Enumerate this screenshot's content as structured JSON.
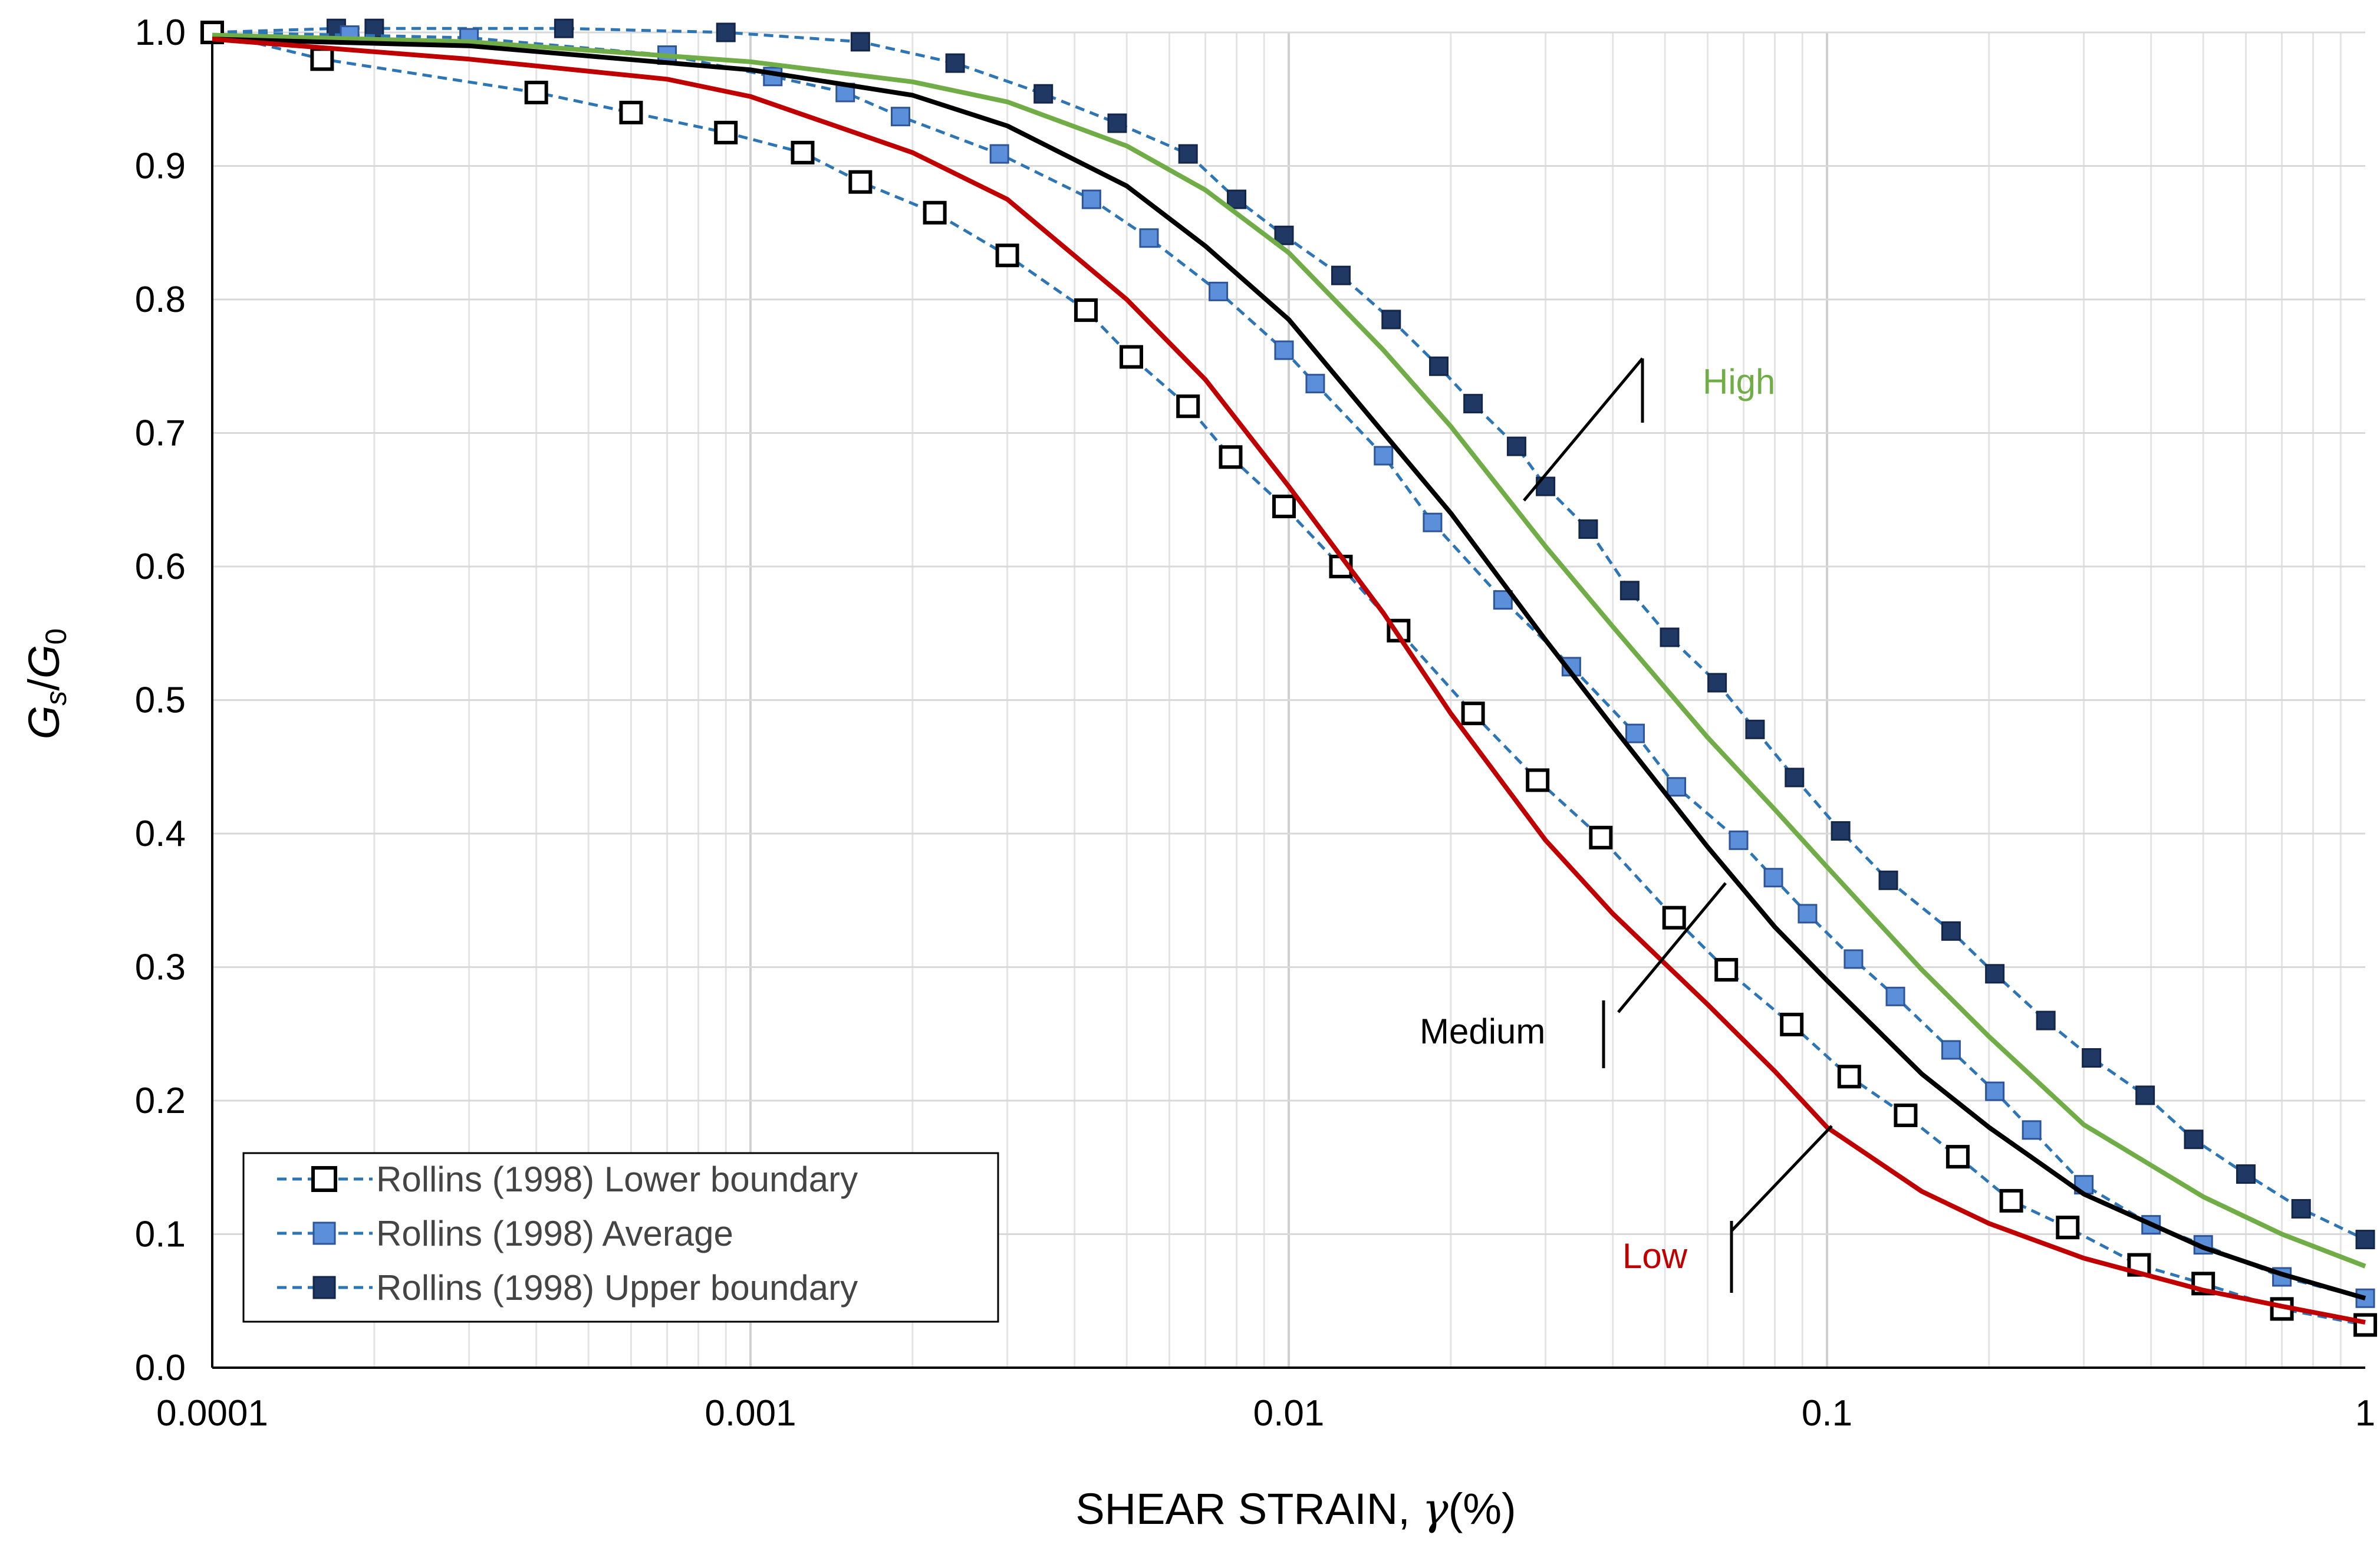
{
  "chart_data": {
    "type": "line",
    "xscale": "log",
    "xlim": [
      0.0001,
      1
    ],
    "ylim": [
      0,
      1
    ],
    "xticks": [
      0.0001,
      0.001,
      0.01,
      0.1,
      1
    ],
    "xtick_labels": [
      "0.0001",
      "0.001",
      "0.01",
      "0.1",
      "1"
    ],
    "yticks": [
      0,
      0.1,
      0.2,
      0.3,
      0.4,
      0.5,
      0.6,
      0.7,
      0.8,
      0.9,
      1.0
    ],
    "ytick_labels": [
      "0.0",
      "0.1",
      "0.2",
      "0.3",
      "0.4",
      "0.5",
      "0.6",
      "0.7",
      "0.8",
      "0.9",
      "1.0"
    ],
    "xlabel": {
      "main": "SHEAR STRAIN, ",
      "symbol": "γ",
      "unit": "(%)"
    },
    "ylabel": {
      "g1": "G",
      "sub1": "s",
      "slash": "/",
      "g2": "G",
      "sub2": "0"
    },
    "grid": true,
    "legend_position": "bottom-left",
    "legend": [
      "Rollins (1998) Lower boundary",
      "Rollins (1998) Average",
      "Rollins  (1998) Upper boundary"
    ],
    "series": [
      {
        "name": "Rollins (1998) Lower boundary",
        "style": "dashed-markers",
        "color": "#2E75B6",
        "marker": "open-square",
        "x": [
          0.0001,
          0.00016,
          0.0004,
          0.0006,
          0.0009,
          0.00125,
          0.0016,
          0.0022,
          0.003,
          0.0042,
          0.0051,
          0.0065,
          0.0078,
          0.0098,
          0.0125,
          0.016,
          0.022,
          0.029,
          0.038,
          0.052,
          0.065,
          0.086,
          0.11,
          0.14,
          0.175,
          0.22,
          0.28,
          0.38,
          0.5,
          0.7,
          1.0
        ],
        "y": [
          1.0,
          0.98,
          0.955,
          0.94,
          0.925,
          0.91,
          0.888,
          0.865,
          0.833,
          0.792,
          0.757,
          0.72,
          0.682,
          0.645,
          0.6,
          0.552,
          0.49,
          0.44,
          0.397,
          0.337,
          0.298,
          0.257,
          0.218,
          0.189,
          0.158,
          0.125,
          0.105,
          0.077,
          0.063,
          0.044,
          0.032
        ]
      },
      {
        "name": "Rollins (1998) Average",
        "style": "dashed-markers",
        "color": "#2E75B6",
        "marker": "filled-square-light",
        "x": [
          0.0001,
          0.00018,
          0.0003,
          0.0007,
          0.0011,
          0.0015,
          0.0019,
          0.0029,
          0.0043,
          0.0055,
          0.0074,
          0.0098,
          0.0112,
          0.015,
          0.0185,
          0.025,
          0.0335,
          0.044,
          0.0525,
          0.0685,
          0.0795,
          0.092,
          0.112,
          0.134,
          0.17,
          0.205,
          0.24,
          0.3,
          0.4,
          0.5,
          0.7,
          1.0
        ],
        "y": [
          1.0,
          0.998,
          0.996,
          0.983,
          0.967,
          0.955,
          0.937,
          0.909,
          0.875,
          0.846,
          0.806,
          0.762,
          0.737,
          0.683,
          0.633,
          0.575,
          0.525,
          0.475,
          0.435,
          0.395,
          0.367,
          0.34,
          0.306,
          0.278,
          0.238,
          0.207,
          0.178,
          0.137,
          0.107,
          0.092,
          0.068,
          0.052
        ]
      },
      {
        "name": "Rollins  (1998) Upper boundary",
        "style": "dashed-markers",
        "color": "#2E75B6",
        "marker": "filled-square-dark",
        "x": [
          0.0001,
          0.00017,
          0.0002,
          0.00045,
          0.0009,
          0.0016,
          0.0024,
          0.0035,
          0.0048,
          0.0065,
          0.008,
          0.0098,
          0.0125,
          0.0155,
          0.019,
          0.022,
          0.0265,
          0.03,
          0.036,
          0.043,
          0.051,
          0.0625,
          0.0735,
          0.087,
          0.106,
          0.13,
          0.17,
          0.205,
          0.255,
          0.31,
          0.39,
          0.48,
          0.6,
          0.76,
          1.0
        ],
        "y": [
          1.0,
          1.003,
          1.003,
          1.003,
          1.0,
          0.993,
          0.977,
          0.954,
          0.932,
          0.909,
          0.875,
          0.848,
          0.818,
          0.785,
          0.75,
          0.722,
          0.69,
          0.66,
          0.628,
          0.582,
          0.547,
          0.513,
          0.478,
          0.442,
          0.402,
          0.365,
          0.327,
          0.295,
          0.26,
          0.232,
          0.204,
          0.171,
          0.145,
          0.119,
          0.096
        ]
      },
      {
        "name": "High",
        "style": "solid",
        "color": "#70AD47",
        "x": [
          0.0001,
          0.0003,
          0.001,
          0.002,
          0.003,
          0.005,
          0.007,
          0.01,
          0.015,
          0.02,
          0.03,
          0.04,
          0.06,
          0.08,
          0.1,
          0.15,
          0.2,
          0.3,
          0.5,
          0.7,
          1.0
        ],
        "y": [
          0.998,
          0.993,
          0.978,
          0.963,
          0.948,
          0.915,
          0.882,
          0.835,
          0.762,
          0.705,
          0.615,
          0.555,
          0.472,
          0.418,
          0.375,
          0.298,
          0.248,
          0.182,
          0.128,
          0.1,
          0.076
        ]
      },
      {
        "name": "Medium",
        "style": "solid",
        "color": "#000000",
        "x": [
          0.0001,
          0.0003,
          0.001,
          0.002,
          0.003,
          0.005,
          0.007,
          0.01,
          0.015,
          0.02,
          0.03,
          0.04,
          0.06,
          0.08,
          0.1,
          0.15,
          0.2,
          0.3,
          0.5,
          0.7,
          1.0
        ],
        "y": [
          0.995,
          0.99,
          0.972,
          0.953,
          0.93,
          0.885,
          0.84,
          0.785,
          0.7,
          0.64,
          0.545,
          0.48,
          0.39,
          0.33,
          0.29,
          0.22,
          0.18,
          0.13,
          0.09,
          0.07,
          0.052
        ]
      },
      {
        "name": "Low",
        "style": "solid",
        "color": "#C00000",
        "x": [
          0.0001,
          0.0003,
          0.0007,
          0.001,
          0.002,
          0.003,
          0.005,
          0.007,
          0.01,
          0.015,
          0.02,
          0.03,
          0.04,
          0.06,
          0.08,
          0.1,
          0.15,
          0.2,
          0.3,
          0.5,
          0.7,
          1.0
        ],
        "y": [
          0.995,
          0.98,
          0.965,
          0.952,
          0.91,
          0.875,
          0.8,
          0.74,
          0.66,
          0.565,
          0.49,
          0.395,
          0.34,
          0.272,
          0.222,
          0.18,
          0.132,
          0.108,
          0.082,
          0.058,
          0.046,
          0.034
        ]
      }
    ],
    "annotations": [
      {
        "text": "High",
        "color": "#70AD47",
        "points_to": "High"
      },
      {
        "text": "Medium",
        "color": "#000000",
        "points_to": "Medium"
      },
      {
        "text": "Low",
        "color": "#C00000",
        "points_to": "Low"
      }
    ]
  }
}
